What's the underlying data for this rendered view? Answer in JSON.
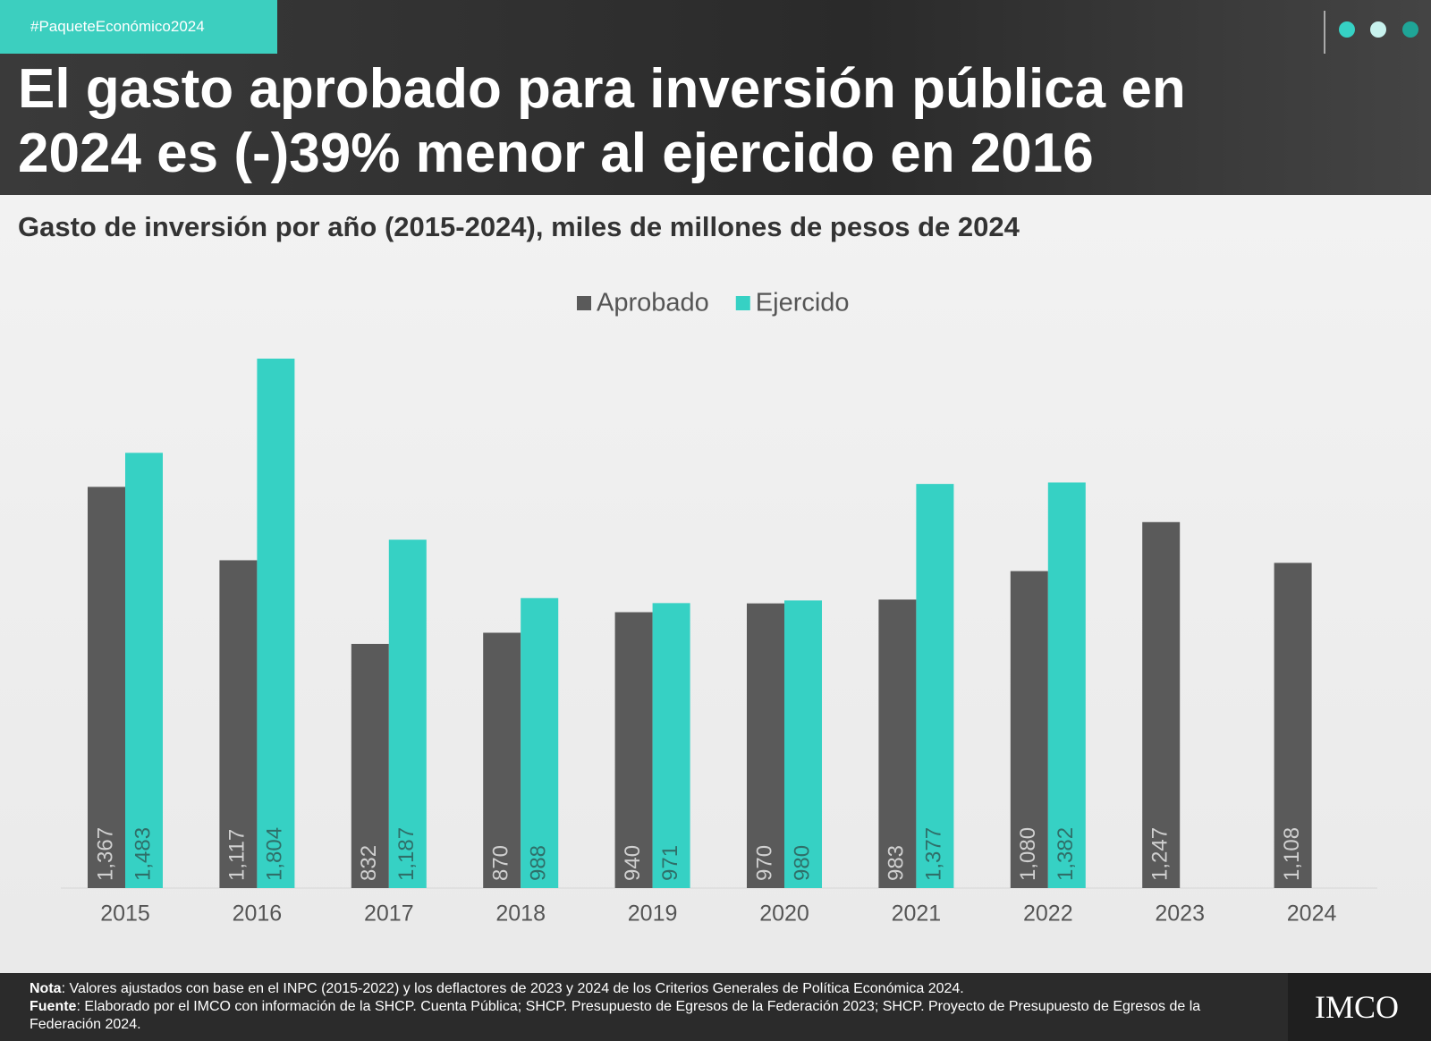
{
  "header": {
    "hashtag": "#PaqueteEconómico2024",
    "title": [
      "El gasto aprobado para inversión pública en",
      "2024 es (-)39% menor al ejercido en 2016"
    ]
  },
  "chart_data": {
    "type": "bar",
    "title": "Gasto de inversión por año (2015-2024), miles de millones de pesos de 2024",
    "categories": [
      "2015",
      "2016",
      "2017",
      "2018",
      "2019",
      "2020",
      "2021",
      "2022",
      "2023",
      "2024"
    ],
    "series": [
      {
        "name": "Aprobado",
        "color": "#5a5a5a",
        "values": [
          1367,
          1117,
          832,
          870,
          940,
          970,
          983,
          1080,
          1247,
          1108
        ],
        "value_labels": [
          "1,367",
          "1,117",
          "832",
          "870",
          "940",
          "970",
          "983",
          "1,080",
          "1,247",
          "1,108"
        ]
      },
      {
        "name": "Ejercido",
        "color": "#36d1c4",
        "values": [
          1483,
          1804,
          1187,
          988,
          971,
          980,
          1377,
          1382,
          null,
          null
        ],
        "value_labels": [
          "1,483",
          "1,804",
          "1,187",
          "988",
          "971",
          "980",
          "1,377",
          "1,382",
          null,
          null
        ]
      }
    ],
    "legend": "top"
  },
  "footer": {
    "note_label": "Nota",
    "note_text": ": Valores ajustados con base en el INPC (2015-2022) y los deflactores de 2023 y 2024 de los Criterios Generales de Política Económica 2024.",
    "source_label": "Fuente",
    "source_text": ": Elaborado por el IMCO con información de la SHCP. Cuenta Pública; SHCP. Presupuesto de Egresos de la Federación 2023; SHCP. Proyecto de Presupuesto de Egresos de la Federación 2024.",
    "logo": "IMCO"
  }
}
